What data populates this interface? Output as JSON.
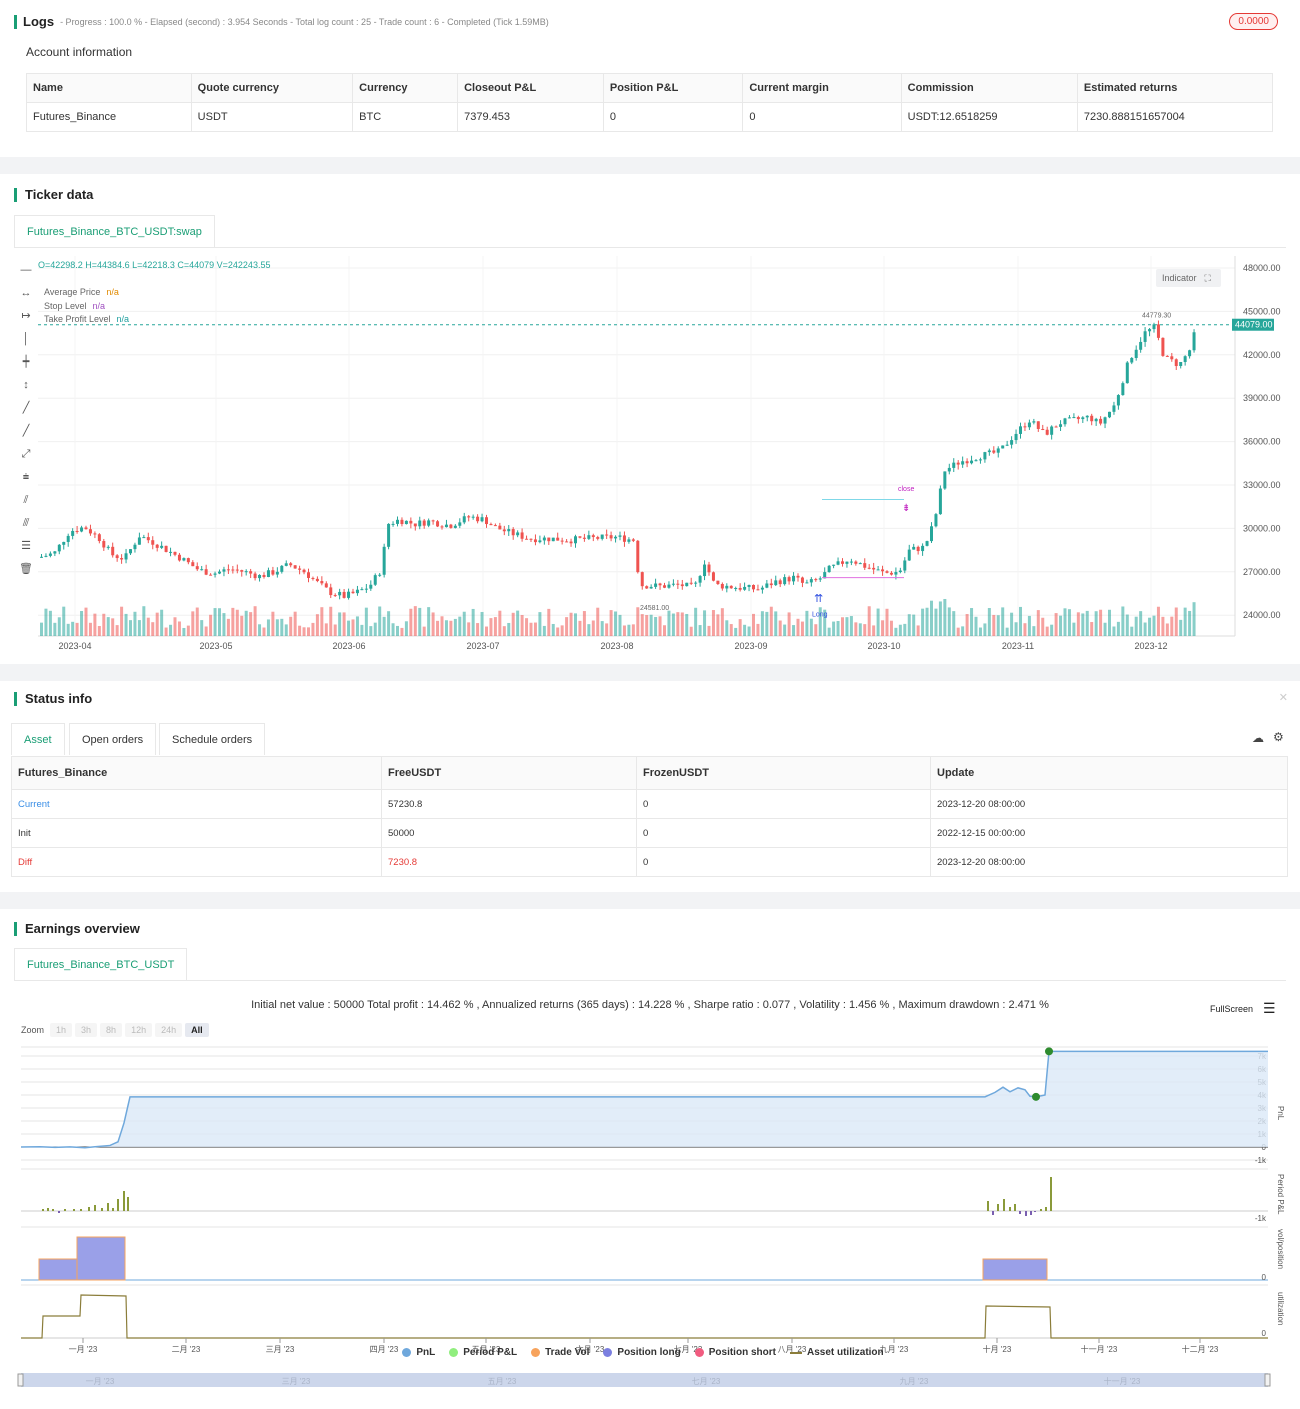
{
  "logs": {
    "title": "Logs",
    "summary": "- Progress : 100.0 % - Elapsed (second) : 3.954  Seconds - Total log count : 25 - Trade count : 6 - Completed (Tick 1.59MB)",
    "badge": "0.0000"
  },
  "account": {
    "title": "Account information",
    "headers": [
      "Name",
      "Quote currency",
      "Currency",
      "Closeout P&L",
      "Position P&L",
      "Current margin",
      "Commission",
      "Estimated returns"
    ],
    "row": [
      "Futures_Binance",
      "USDT",
      "BTC",
      "7379.453",
      "0",
      "0",
      "USDT:12.6518259",
      "7230.888151657004"
    ]
  },
  "ticker": {
    "title": "Ticker data",
    "tab": "Futures_Binance_BTC_USDT:swap",
    "ohlc": "O=42298.2 H=44384.6 L=42218.3 C=44079 V=242243.55",
    "legend": [
      {
        "label": "Average Price",
        "value": "n/a",
        "color": "#e08a00"
      },
      {
        "label": "Stop Level",
        "value": "n/a",
        "color": "#a050c0"
      },
      {
        "label": "Take Profit Level",
        "value": "n/a",
        "color": "#20a0a0"
      }
    ],
    "indicator_btn": "Indicator",
    "price_ticks": [
      "48000.00",
      "45000.00",
      "42000.00",
      "39000.00",
      "36000.00",
      "33000.00",
      "30000.00",
      "27000.00",
      "24000.00"
    ],
    "date_ticks": [
      "2023-04",
      "2023-05",
      "2023-06",
      "2023-07",
      "2023-08",
      "2023-09",
      "2023-10",
      "2023-11",
      "2023-12"
    ],
    "last_price": "44079.00",
    "high_label": "44779.30",
    "low_label": "24581.00",
    "mark_close": "close",
    "mark_long": "Long"
  },
  "status": {
    "title": "Status info",
    "tabs": [
      "Asset",
      "Open orders",
      "Schedule orders"
    ],
    "headers": [
      "Futures_Binance",
      "FreeUSDT",
      "FrozenUSDT",
      "Update"
    ],
    "rows": [
      [
        "Current",
        "57230.8",
        "0",
        "2023-12-20 08:00:00"
      ],
      [
        "Init",
        "50000",
        "0",
        "2022-12-15 00:00:00"
      ],
      [
        "Diff",
        "7230.8",
        "0",
        "2023-12-20 08:00:00"
      ]
    ]
  },
  "earnings": {
    "title": "Earnings overview",
    "tab": "Futures_Binance_BTC_USDT",
    "stats": "Initial net value : 50000 Total profit : 14.462 % , Annualized returns (365 days) : 14.228 % , Sharpe ratio : 0.077 , Volatility : 1.456 % , Maximum drawdown : 2.471 %",
    "fullscreen": "FullScreen",
    "zoom_label": "Zoom",
    "zoom_opts": [
      "1h",
      "3h",
      "8h",
      "12h",
      "24h",
      "All"
    ],
    "pnl_ticks": [
      "7k",
      "6k",
      "5k",
      "4k",
      "3k",
      "2k",
      "1k",
      "0",
      "-1k"
    ],
    "axis_titles": [
      "PnL",
      "Period P&L",
      "vol/position",
      "utilization"
    ],
    "period_tick": "-1k",
    "zero": "0",
    "months": [
      "一月 '23",
      "二月 '23",
      "三月 '23",
      "四月 '23",
      "五月 '23",
      "六月 '23",
      "七月 '23",
      "八月 '23",
      "九月 '23",
      "十月 '23",
      "十一月 '23",
      "十二月 '23"
    ],
    "nav_months": [
      "一月 '23",
      "三月 '23",
      "五月 '23",
      "七月 '23",
      "九月 '23",
      "十一月 '23"
    ],
    "legend": [
      {
        "label": "PnL",
        "color": "#6fa8dc"
      },
      {
        "label": "Period P&L",
        "color": "#90ee7e"
      },
      {
        "label": "Trade Vol",
        "color": "#f7a35c"
      },
      {
        "label": "Position long",
        "color": "#7b7fe0"
      },
      {
        "label": "Position short",
        "color": "#f15c80"
      },
      {
        "label": "Asset utilization",
        "color": "#8b7d3a"
      }
    ]
  },
  "colors": {
    "accent": "#1a9e75",
    "up": "#26a69a",
    "down": "#ef5350",
    "diff": "#e53935",
    "current": "#3a8ee6"
  }
}
